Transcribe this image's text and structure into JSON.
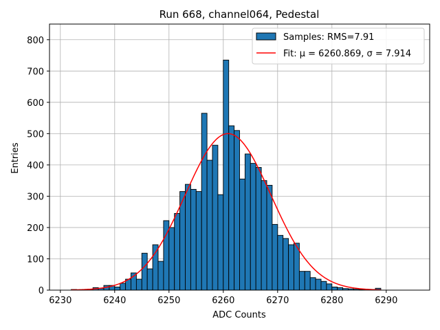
{
  "chart_data": {
    "type": "bar",
    "title": "Run 668, channel064, Pedestal",
    "xlabel": "ADC Counts",
    "ylabel": "Entries",
    "xlim": [
      6228,
      6298
    ],
    "ylim": [
      0,
      850
    ],
    "grid": true,
    "bin_width": 1,
    "bin_left_edges": [
      6232,
      6233,
      6234,
      6235,
      6236,
      6237,
      6238,
      6239,
      6240,
      6241,
      6242,
      6243,
      6244,
      6245,
      6246,
      6247,
      6248,
      6249,
      6250,
      6251,
      6252,
      6253,
      6254,
      6255,
      6256,
      6257,
      6258,
      6259,
      6260,
      6261,
      6262,
      6263,
      6264,
      6265,
      6266,
      6267,
      6268,
      6269,
      6270,
      6271,
      6272,
      6273,
      6274,
      6275,
      6276,
      6277,
      6278,
      6279,
      6280,
      6281,
      6282,
      6283,
      6284,
      6285,
      6286,
      6287,
      6288,
      6289
    ],
    "bin_counts": [
      2,
      1,
      2,
      3,
      8,
      6,
      15,
      15,
      10,
      22,
      35,
      55,
      35,
      118,
      68,
      145,
      92,
      222,
      200,
      245,
      315,
      338,
      322,
      315,
      565,
      415,
      463,
      305,
      735,
      525,
      510,
      355,
      435,
      405,
      392,
      350,
      335,
      210,
      175,
      165,
      145,
      150,
      60,
      60,
      40,
      35,
      28,
      20,
      10,
      8,
      5,
      4,
      3,
      2,
      1,
      1,
      6,
      0
    ],
    "series": [
      {
        "name": "Samples: RMS=7.91",
        "kind": "histogram",
        "color": "#1f77b4",
        "edgecolor": "#000000"
      },
      {
        "name": "Fit: μ = 6260.869, σ = 7.914",
        "kind": "gaussian_fit",
        "color": "#ff0000",
        "mu": 6260.869,
        "sigma": 7.914,
        "amplitude": 500,
        "x_range": [
          6232,
          6289
        ]
      }
    ],
    "x_ticks": [
      6230,
      6240,
      6250,
      6260,
      6270,
      6280,
      6290
    ],
    "y_ticks": [
      0,
      100,
      200,
      300,
      400,
      500,
      600,
      700,
      800
    ],
    "legend_position": "top-right"
  }
}
